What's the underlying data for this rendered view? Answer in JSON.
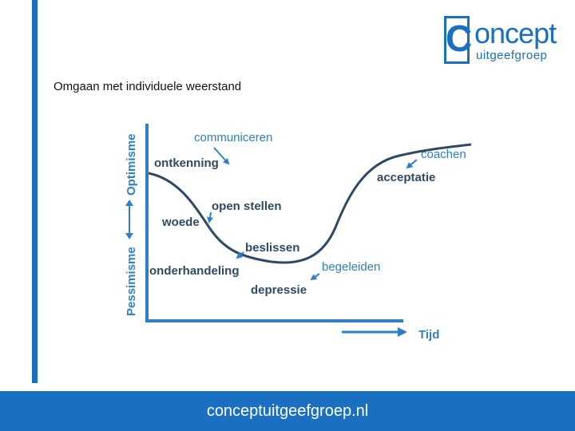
{
  "logo": {
    "letter": "C",
    "word": "oncept",
    "sub": "uitgeefgroep"
  },
  "slide": {
    "title": "Omgaan met individuele weerstand"
  },
  "diagram": {
    "y_axis_top": "Optimisme",
    "y_axis_bottom": "Pessimisme",
    "x_axis": "Tijd",
    "labels": {
      "ontkenning": "ontkenning",
      "communiceren": "communiceren",
      "woede": "woede",
      "open_stellen": "open stellen",
      "onderhandeling": "onderhandeling",
      "beslissen": "beslissen",
      "depressie": "depressie",
      "begeleiden": "begeleiden",
      "acceptatie": "acceptatie",
      "coachen": "coachen"
    }
  },
  "footer": {
    "url": "conceptuitgeefgroep.nl"
  },
  "colors": {
    "brand": "#1a6fc1",
    "label_dark": "#2e4a63",
    "label_blue": "#2f7fc8"
  }
}
